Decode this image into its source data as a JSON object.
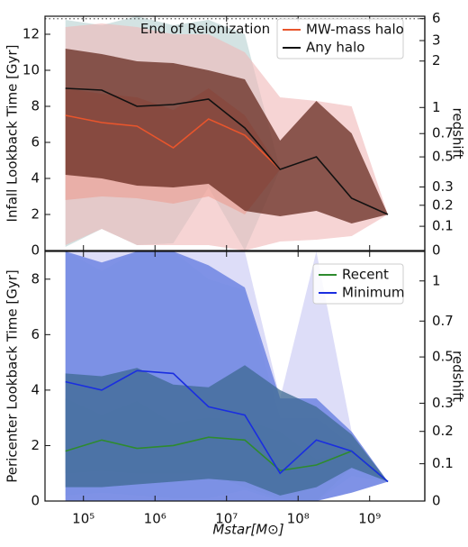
{
  "chart_data": [
    {
      "type": "line",
      "ylabel": "Infall Lookback Time [Gyr]",
      "y2label": "redshift",
      "ylim": [
        0,
        13
      ],
      "yticks": [
        0,
        2,
        4,
        6,
        8,
        10,
        12
      ],
      "y2scale": "lookback",
      "y2lim": [
        0,
        6.6
      ],
      "y2ticks": [
        0,
        0.1,
        0.2,
        0.3,
        0.5,
        0.7,
        1,
        2,
        3,
        6
      ],
      "legend": "upper right",
      "reionization": {
        "label": "End of Reionization",
        "redshift": 6
      },
      "x": [
        56000,
        180000,
        560000,
        1800000,
        5600000,
        18000000,
        56000000,
        180000000,
        560000000,
        1800000000
      ],
      "series": [
        {
          "name": "MW-mass halo",
          "color": "#e8552c",
          "values": [
            7.5,
            7.1,
            6.9,
            5.7,
            7.3,
            6.4,
            4.5,
            null,
            null,
            null
          ],
          "bands": [
            {
              "color": "#b5d0d0",
              "opacity": 0.6,
              "upper": [
                12.8,
                12.5,
                13.0,
                12.5,
                12.8,
                12.0,
                4.5,
                null,
                null,
                null
              ],
              "lower": [
                0.2,
                1.2,
                0.3,
                0.4,
                3.5,
                0.0,
                4.5,
                null,
                null,
                null
              ]
            },
            {
              "color": "#e8704f",
              "opacity": 0.55,
              "upper": [
                9.0,
                8.7,
                8.5,
                7.8,
                9.0,
                7.5,
                4.5,
                null,
                null,
                null
              ],
              "lower": [
                2.8,
                3.0,
                2.9,
                2.6,
                3.0,
                2.0,
                4.5,
                null,
                null,
                null
              ]
            }
          ]
        },
        {
          "name": "Any halo",
          "color": "#111111",
          "values": [
            9.0,
            8.9,
            8.0,
            8.1,
            8.4,
            6.8,
            4.5,
            5.2,
            2.9,
            2.0
          ],
          "bands": [
            {
              "color": "#f0b8b8",
              "opacity": 0.6,
              "upper": [
                12.4,
                12.6,
                12.4,
                12.0,
                12.0,
                11.0,
                8.5,
                8.3,
                8.0,
                2.0
              ],
              "lower": [
                0.3,
                1.2,
                0.3,
                0.3,
                0.3,
                0.0,
                0.5,
                0.6,
                0.8,
                2.0
              ]
            },
            {
              "color": "#5c2014",
              "opacity": 0.7,
              "upper": [
                11.2,
                10.9,
                10.5,
                10.4,
                10.0,
                9.5,
                6.1,
                8.3,
                6.5,
                2.0
              ],
              "lower": [
                4.2,
                4.0,
                3.6,
                3.5,
                3.7,
                2.2,
                1.9,
                2.2,
                1.5,
                2.0
              ]
            }
          ]
        }
      ]
    },
    {
      "type": "line",
      "ylabel": "Pericenter Lookback Time [Gyr]",
      "y2label": "redshift",
      "xlabel": "Mstar[M⊙]",
      "xscale": "log",
      "xlim": [
        29000,
        5900000000
      ],
      "xticks": [
        {
          "value": 100000,
          "label": "10⁵"
        },
        {
          "value": 1000000,
          "label": "10⁶"
        },
        {
          "value": 10000000,
          "label": "10⁷"
        },
        {
          "value": 100000000,
          "label": "10⁸"
        },
        {
          "value": 1000000000,
          "label": "10⁹"
        }
      ],
      "ylim": [
        0,
        9
      ],
      "yticks": [
        0,
        2,
        4,
        6,
        8
      ],
      "y2scale": "lookback",
      "y2lim": [
        0,
        1.32
      ],
      "y2ticks": [
        0,
        0.1,
        0.2,
        0.3,
        0.5,
        0.7,
        1
      ],
      "legend": "upper right",
      "x": [
        56000,
        180000,
        560000,
        1800000,
        5600000,
        18000000,
        56000000,
        180000000,
        560000000,
        1800000000
      ],
      "series": [
        {
          "name": "Recent",
          "color": "#2e8b2e",
          "values": [
            1.8,
            2.2,
            1.9,
            2.0,
            2.3,
            2.2,
            1.1,
            1.3,
            1.8,
            0.7
          ],
          "bands": [
            {
              "color": "#bfe8d8",
              "opacity": 0.7,
              "upper": [
                9.0,
                8.3,
                9.0,
                9.0,
                8.0,
                7.6,
                3.0,
                3.0,
                2.0,
                0.7
              ],
              "lower": [
                0.2,
                0.3,
                0.2,
                0.1,
                0.1,
                0.4,
                0.0,
                0.0,
                0.9,
                0.7
              ]
            },
            {
              "color": "#8ed88e",
              "opacity": 0.8,
              "upper": [
                3.7,
                3.1,
                3.6,
                2.8,
                3.0,
                2.9,
                2.5,
                1.5,
                1.8,
                0.7
              ],
              "lower": [
                1.0,
                1.1,
                1.0,
                1.0,
                1.0,
                0.5,
                0.1,
                0.0,
                1.2,
                0.7
              ]
            }
          ]
        },
        {
          "name": "Minimum",
          "color": "#1a2ee0",
          "values": [
            4.3,
            4.0,
            4.7,
            4.6,
            3.4,
            3.1,
            1.0,
            2.2,
            1.8,
            0.7
          ],
          "bands": [
            {
              "color": "#d4d4f6",
              "opacity": 0.8,
              "upper": [
                9.0,
                9.0,
                9.0,
                9.0,
                9.0,
                9.0,
                3.7,
                9.0,
                2.5,
                0.7
              ],
              "lower": [
                0,
                0,
                0,
                0,
                0,
                0,
                0,
                0,
                0.3,
                0.7
              ]
            },
            {
              "color": "#5f78e0",
              "opacity": 0.75,
              "upper": [
                9.0,
                8.6,
                9.0,
                9.0,
                8.5,
                7.7,
                3.7,
                3.7,
                2.5,
                0.7
              ],
              "lower": [
                0,
                0,
                0,
                0,
                0,
                0,
                0,
                0,
                0.3,
                0.7
              ]
            },
            {
              "color": "#3d6a92",
              "opacity": 0.75,
              "upper": [
                4.6,
                4.5,
                4.8,
                4.2,
                4.1,
                4.9,
                4.0,
                3.4,
                2.4,
                0.7
              ],
              "lower": [
                0.5,
                0.5,
                0.6,
                0.7,
                0.8,
                0.7,
                0.2,
                0.5,
                1.2,
                0.7
              ]
            }
          ]
        }
      ]
    }
  ]
}
